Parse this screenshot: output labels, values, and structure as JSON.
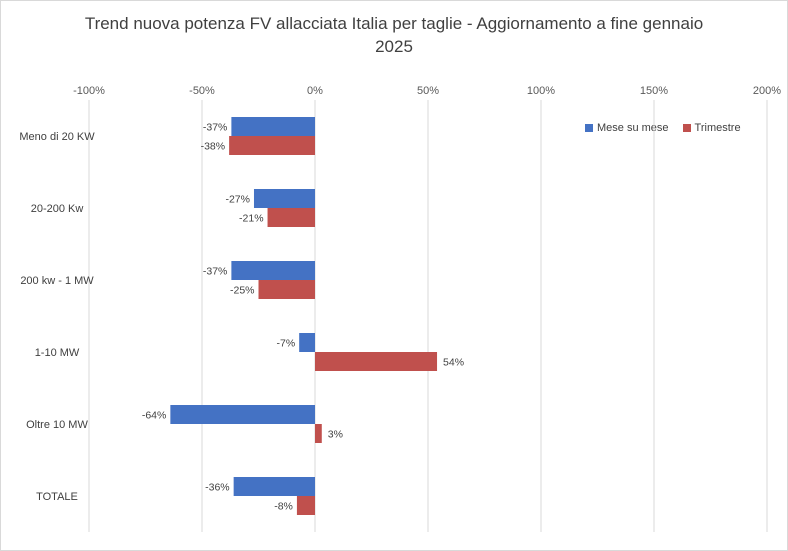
{
  "chart_data": {
    "type": "bar",
    "orientation": "horizontal",
    "title": "Trend nuova potenza FV allacciata Italia per taglie - Aggiornamento a fine gennaio 2025",
    "title_lines": [
      "Trend nuova potenza FV allacciata Italia per taglie - Aggiornamento a fine gennaio",
      "2025"
    ],
    "categories": [
      "Meno di 20 KW",
      "20-200 Kw",
      "200 kw - 1 MW",
      "1-10 MW",
      "Oltre 10 MW",
      "TOTALE"
    ],
    "series": [
      {
        "name": "Mese su mese",
        "color": "#4472c4",
        "values": [
          -37,
          -27,
          -37,
          -7,
          -64,
          -36
        ],
        "labels": [
          "-37%",
          "-27%",
          "-37%",
          "-7%",
          "-64%",
          "-36%"
        ]
      },
      {
        "name": "Trimestre",
        "color": "#c0504d",
        "values": [
          -38,
          -21,
          -25,
          54,
          3,
          -8
        ],
        "labels": [
          "-38%",
          "-21%",
          "-25%",
          "54%",
          "3%",
          "-8%"
        ]
      }
    ],
    "xlim": [
      -100,
      200
    ],
    "x_ticks": [
      -100,
      -50,
      0,
      50,
      100,
      150,
      200
    ],
    "x_tick_labels": [
      "-100%",
      "-50%",
      "0%",
      "50%",
      "100%",
      "150%",
      "200%"
    ],
    "x_axis_position": "top",
    "grid": "vertical",
    "legend_position": "top-right"
  }
}
